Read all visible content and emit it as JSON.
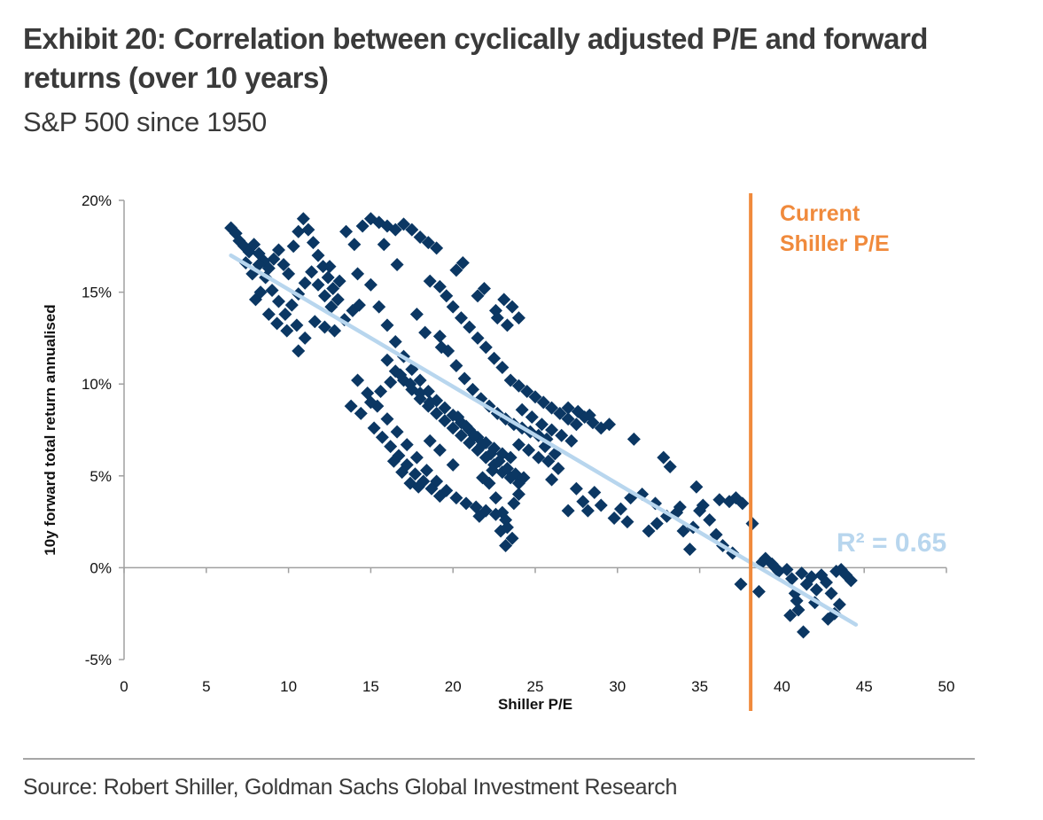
{
  "header": {
    "title": "Exhibit 20: Correlation between cyclically adjusted P/E and forward returns (over 10 years)",
    "subtitle": "S&P 500 since 1950"
  },
  "footer": {
    "source": "Source: Robert Shiller, Goldman Sachs Global Investment Research"
  },
  "colors": {
    "points": "#0b3763",
    "trendline": "#b8d6ee",
    "current_line": "#f08a3c",
    "axis": "#a0a0a0"
  },
  "chart_data": {
    "type": "scatter",
    "title": "",
    "xlabel": "Shiller P/E",
    "ylabel": "10y forward total return annualised",
    "xlim": [
      0,
      50
    ],
    "ylim": [
      -5,
      20
    ],
    "x_ticks": [
      "0",
      "5",
      "10",
      "15",
      "20",
      "25",
      "30",
      "35",
      "40",
      "45",
      "50"
    ],
    "y_ticks": [
      "-5%",
      "0%",
      "5%",
      "10%",
      "15%",
      "20%"
    ],
    "marker": "diamond",
    "grid": false,
    "trendline": {
      "x": [
        6.5,
        44.5
      ],
      "y": [
        17.0,
        -3.1
      ],
      "label": "R² = 0.65"
    },
    "current_pe": {
      "x": 38.1,
      "label_line1": "Current",
      "label_line2": "Shiller P/E"
    },
    "points": [
      [
        6.5,
        18.5
      ],
      [
        6.8,
        18.2
      ],
      [
        7.0,
        17.8
      ],
      [
        7.3,
        17.5
      ],
      [
        7.6,
        17.2
      ],
      [
        7.9,
        17.6
      ],
      [
        8.2,
        17.1
      ],
      [
        8.5,
        16.7
      ],
      [
        8.8,
        16.3
      ],
      [
        9.1,
        16.8
      ],
      [
        9.4,
        17.3
      ],
      [
        9.7,
        16.5
      ],
      [
        10.0,
        16.0
      ],
      [
        10.3,
        17.5
      ],
      [
        10.6,
        18.3
      ],
      [
        10.9,
        19.0
      ],
      [
        11.2,
        18.4
      ],
      [
        11.5,
        17.7
      ],
      [
        11.8,
        17.0
      ],
      [
        12.1,
        16.4
      ],
      [
        12.4,
        15.8
      ],
      [
        12.7,
        15.2
      ],
      [
        13.0,
        14.6
      ],
      [
        12.6,
        14.2
      ],
      [
        12.2,
        14.8
      ],
      [
        11.8,
        15.4
      ],
      [
        11.4,
        16.1
      ],
      [
        11.0,
        15.5
      ],
      [
        10.6,
        14.9
      ],
      [
        10.2,
        14.3
      ],
      [
        9.8,
        13.8
      ],
      [
        9.4,
        14.5
      ],
      [
        9.0,
        15.1
      ],
      [
        8.6,
        15.8
      ],
      [
        8.2,
        16.5
      ],
      [
        7.8,
        16.0
      ],
      [
        7.4,
        16.6
      ],
      [
        8.0,
        14.6
      ],
      [
        8.3,
        15.0
      ],
      [
        8.8,
        13.8
      ],
      [
        9.3,
        13.3
      ],
      [
        9.9,
        12.9
      ],
      [
        10.5,
        13.2
      ],
      [
        11.0,
        12.5
      ],
      [
        10.6,
        11.8
      ],
      [
        11.6,
        13.4
      ],
      [
        12.2,
        13.1
      ],
      [
        12.8,
        12.9
      ],
      [
        13.4,
        13.5
      ],
      [
        13.9,
        14.0
      ],
      [
        14.3,
        14.3
      ],
      [
        13.5,
        18.3
      ],
      [
        14.0,
        17.6
      ],
      [
        14.5,
        18.6
      ],
      [
        15.0,
        19.0
      ],
      [
        15.5,
        18.8
      ],
      [
        16.0,
        18.6
      ],
      [
        16.5,
        18.4
      ],
      [
        17.0,
        18.7
      ],
      [
        17.5,
        18.4
      ],
      [
        18.0,
        18.0
      ],
      [
        18.5,
        17.7
      ],
      [
        19.0,
        17.4
      ],
      [
        15.8,
        17.6
      ],
      [
        16.6,
        16.5
      ],
      [
        12.5,
        16.4
      ],
      [
        14.2,
        16.0
      ],
      [
        13.1,
        15.6
      ],
      [
        20.2,
        16.2
      ],
      [
        20.6,
        16.6
      ],
      [
        18.6,
        15.6
      ],
      [
        19.2,
        15.3
      ],
      [
        19.6,
        14.8
      ],
      [
        20.0,
        14.2
      ],
      [
        20.5,
        13.6
      ],
      [
        21.0,
        13.1
      ],
      [
        21.5,
        12.5
      ],
      [
        22.0,
        12.0
      ],
      [
        22.5,
        11.4
      ],
      [
        23.0,
        10.9
      ],
      [
        22.6,
        14.0
      ],
      [
        23.1,
        14.6
      ],
      [
        23.6,
        14.2
      ],
      [
        24.0,
        13.6
      ],
      [
        23.3,
        13.2
      ],
      [
        22.7,
        13.6
      ],
      [
        21.5,
        14.8
      ],
      [
        21.9,
        15.2
      ],
      [
        17.8,
        13.8
      ],
      [
        18.3,
        12.8
      ],
      [
        19.3,
        12.0
      ],
      [
        15.0,
        15.4
      ],
      [
        15.5,
        14.2
      ],
      [
        16.0,
        13.2
      ],
      [
        16.5,
        12.3
      ],
      [
        17.0,
        11.5
      ],
      [
        17.5,
        10.8
      ],
      [
        18.0,
        10.2
      ],
      [
        18.5,
        9.6
      ],
      [
        19.0,
        9.1
      ],
      [
        19.5,
        8.7
      ],
      [
        20.0,
        8.3
      ],
      [
        20.5,
        7.9
      ],
      [
        21.0,
        7.5
      ],
      [
        21.5,
        7.1
      ],
      [
        22.0,
        6.8
      ],
      [
        22.5,
        6.5
      ],
      [
        23.0,
        6.2
      ],
      [
        23.5,
        6.0
      ],
      [
        14.2,
        10.2
      ],
      [
        14.8,
        9.5
      ],
      [
        15.4,
        8.8
      ],
      [
        16.0,
        8.1
      ],
      [
        16.6,
        7.4
      ],
      [
        17.2,
        6.7
      ],
      [
        17.8,
        6.0
      ],
      [
        18.4,
        5.3
      ],
      [
        19.0,
        4.7
      ],
      [
        19.6,
        4.2
      ],
      [
        20.2,
        3.8
      ],
      [
        20.8,
        3.5
      ],
      [
        21.4,
        3.3
      ],
      [
        22.0,
        3.1
      ],
      [
        22.6,
        2.9
      ],
      [
        23.2,
        2.6
      ],
      [
        16.0,
        11.3
      ],
      [
        16.5,
        10.7
      ],
      [
        17.0,
        10.2
      ],
      [
        17.5,
        9.7
      ],
      [
        18.0,
        9.2
      ],
      [
        18.5,
        8.8
      ],
      [
        19.0,
        8.4
      ],
      [
        19.5,
        8.0
      ],
      [
        20.0,
        7.6
      ],
      [
        20.5,
        7.2
      ],
      [
        21.0,
        6.8
      ],
      [
        21.5,
        6.4
      ],
      [
        22.0,
        6.0
      ],
      [
        22.5,
        5.6
      ],
      [
        23.0,
        5.2
      ],
      [
        23.5,
        4.9
      ],
      [
        24.0,
        4.6
      ],
      [
        15.2,
        7.6
      ],
      [
        15.7,
        7.1
      ],
      [
        16.2,
        6.6
      ],
      [
        16.7,
        6.1
      ],
      [
        17.2,
        5.6
      ],
      [
        17.7,
        5.1
      ],
      [
        18.2,
        4.7
      ],
      [
        18.7,
        4.3
      ],
      [
        19.2,
        3.9
      ],
      [
        13.8,
        8.8
      ],
      [
        14.4,
        8.4
      ],
      [
        15.0,
        9.0
      ],
      [
        15.6,
        9.6
      ],
      [
        16.2,
        10.1
      ],
      [
        16.8,
        10.5
      ],
      [
        17.4,
        10.0
      ],
      [
        18.0,
        9.5
      ],
      [
        18.6,
        9.0
      ],
      [
        19.2,
        12.6
      ],
      [
        19.7,
        11.8
      ],
      [
        20.2,
        11.0
      ],
      [
        20.7,
        10.3
      ],
      [
        21.2,
        9.7
      ],
      [
        21.7,
        9.2
      ],
      [
        22.2,
        8.8
      ],
      [
        22.7,
        8.4
      ],
      [
        23.2,
        8.1
      ],
      [
        23.7,
        7.8
      ],
      [
        24.2,
        7.6
      ],
      [
        24.7,
        7.4
      ],
      [
        25.2,
        7.2
      ],
      [
        25.7,
        7.0
      ],
      [
        20.3,
        8.2
      ],
      [
        20.8,
        7.7
      ],
      [
        21.3,
        7.2
      ],
      [
        21.8,
        6.7
      ],
      [
        22.3,
        6.2
      ],
      [
        22.8,
        5.8
      ],
      [
        23.3,
        5.4
      ],
      [
        23.8,
        5.1
      ],
      [
        24.3,
        4.9
      ],
      [
        22.2,
        4.6
      ],
      [
        22.6,
        3.8
      ],
      [
        23.0,
        3.0
      ],
      [
        23.3,
        2.2
      ],
      [
        23.6,
        1.6
      ],
      [
        23.2,
        1.2
      ],
      [
        22.9,
        2.0
      ],
      [
        23.7,
        3.5
      ],
      [
        24.0,
        4.0
      ],
      [
        21.6,
        2.8
      ],
      [
        21.8,
        4.9
      ],
      [
        22.4,
        5.3
      ],
      [
        20.0,
        5.6
      ],
      [
        19.2,
        6.4
      ],
      [
        18.6,
        6.9
      ],
      [
        17.4,
        4.6
      ],
      [
        16.9,
        5.2
      ],
      [
        16.4,
        5.8
      ],
      [
        17.9,
        4.4
      ],
      [
        23.5,
        10.2
      ],
      [
        24.0,
        9.9
      ],
      [
        24.5,
        9.6
      ],
      [
        25.0,
        9.3
      ],
      [
        25.5,
        9.0
      ],
      [
        26.0,
        8.7
      ],
      [
        26.5,
        8.4
      ],
      [
        27.0,
        8.1
      ],
      [
        27.5,
        7.8
      ],
      [
        28.0,
        8.2
      ],
      [
        28.5,
        7.9
      ],
      [
        29.0,
        7.6
      ],
      [
        29.5,
        7.8
      ],
      [
        24.2,
        8.6
      ],
      [
        24.8,
        8.2
      ],
      [
        25.4,
        7.8
      ],
      [
        26.0,
        7.5
      ],
      [
        26.6,
        7.2
      ],
      [
        27.2,
        6.9
      ],
      [
        25.6,
        6.6
      ],
      [
        26.2,
        6.2
      ],
      [
        24.0,
        6.7
      ],
      [
        24.6,
        6.4
      ],
      [
        25.2,
        6.0
      ],
      [
        25.8,
        5.8
      ],
      [
        26.4,
        5.4
      ],
      [
        27.0,
        8.7
      ],
      [
        27.6,
        8.5
      ],
      [
        28.3,
        8.3
      ],
      [
        26.0,
        4.8
      ],
      [
        27.5,
        4.3
      ],
      [
        27.9,
        3.6
      ],
      [
        28.2,
        3.1
      ],
      [
        28.6,
        4.1
      ],
      [
        29.0,
        3.4
      ],
      [
        27.0,
        3.1
      ],
      [
        29.8,
        2.7
      ],
      [
        30.2,
        3.2
      ],
      [
        30.6,
        2.5
      ],
      [
        31.0,
        7.0
      ],
      [
        31.5,
        4.0
      ],
      [
        31.9,
        2.0
      ],
      [
        32.3,
        3.5
      ],
      [
        32.8,
        6.0
      ],
      [
        33.2,
        5.5
      ],
      [
        33.6,
        3.0
      ],
      [
        34.0,
        2.0
      ],
      [
        34.4,
        1.0
      ],
      [
        34.8,
        4.4
      ],
      [
        35.2,
        3.4
      ],
      [
        35.6,
        2.6
      ],
      [
        36.0,
        1.8
      ],
      [
        36.4,
        1.2
      ],
      [
        36.8,
        3.6
      ],
      [
        37.2,
        3.8
      ],
      [
        37.6,
        3.5
      ],
      [
        37.0,
        0.8
      ],
      [
        36.2,
        3.7
      ],
      [
        35.0,
        3.1
      ],
      [
        33.0,
        2.8
      ],
      [
        32.4,
        2.4
      ],
      [
        30.8,
        3.8
      ],
      [
        34.6,
        2.2
      ],
      [
        33.8,
        3.3
      ],
      [
        37.5,
        -0.9
      ],
      [
        38.2,
        2.4
      ],
      [
        38.6,
        -1.3
      ],
      [
        39.0,
        0.5
      ],
      [
        39.4,
        0.2
      ],
      [
        39.8,
        -0.2
      ],
      [
        40.3,
        -0.1
      ],
      [
        40.6,
        -0.6
      ],
      [
        40.9,
        -1.8
      ],
      [
        41.2,
        -0.3
      ],
      [
        41.5,
        -0.9
      ],
      [
        41.8,
        -0.5
      ],
      [
        42.1,
        -1.2
      ],
      [
        42.4,
        -0.4
      ],
      [
        42.7,
        -0.8
      ],
      [
        43.0,
        -1.4
      ],
      [
        43.3,
        -0.2
      ],
      [
        43.6,
        -0.1
      ],
      [
        43.9,
        -0.4
      ],
      [
        44.2,
        -0.7
      ],
      [
        40.5,
        -2.6
      ],
      [
        41.3,
        -3.5
      ],
      [
        42.8,
        -2.8
      ],
      [
        43.5,
        -2.0
      ],
      [
        41.0,
        -2.3
      ],
      [
        42.0,
        -1.9
      ],
      [
        43.2,
        -2.5
      ],
      [
        40.8,
        -1.4
      ],
      [
        39.6,
        0.0
      ],
      [
        38.8,
        0.3
      ]
    ]
  }
}
